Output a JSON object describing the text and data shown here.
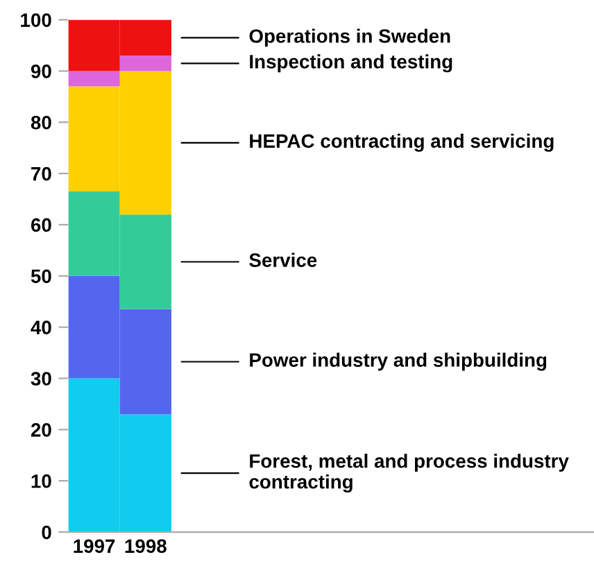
{
  "chart_data": {
    "type": "bar",
    "stacked": true,
    "categories": [
      "1997",
      "1998"
    ],
    "series": [
      {
        "name": "Forest, metal and process industry contracting",
        "color": "#11ccee",
        "values": [
          30,
          23
        ]
      },
      {
        "name": "Power industry and shipbuilding",
        "color": "#5566ee",
        "values": [
          20,
          20.5
        ]
      },
      {
        "name": "Service",
        "color": "#33cc99",
        "values": [
          16.5,
          18.5
        ]
      },
      {
        "name": "HEPAC contracting and servicing",
        "color": "#ffd000",
        "values": [
          20.5,
          28
        ]
      },
      {
        "name": "Inspection and testing",
        "color": "#dd66dd",
        "values": [
          3,
          3
        ]
      },
      {
        "name": "Operations in Sweden",
        "color": "#ee1111",
        "values": [
          10,
          7
        ]
      }
    ],
    "ylim": [
      0,
      100
    ],
    "yticks": [
      0,
      10,
      20,
      30,
      40,
      50,
      60,
      70,
      80,
      90,
      100
    ],
    "grid": false,
    "legend": false
  }
}
